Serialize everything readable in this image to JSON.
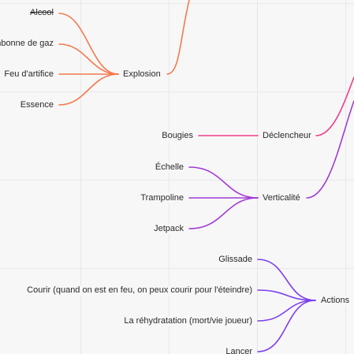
{
  "colors": {
    "orange": "#f37a4d",
    "pink": "#f03d8a",
    "purple": "#a23bd6",
    "violet": "#7c3ff0"
  },
  "branches": {
    "explosion": {
      "label": "Explosion",
      "children": [
        "Alcool",
        "Bonbonne de gaz",
        "Feu d'artifice",
        "Essence"
      ]
    },
    "declencheur": {
      "label": "Déclencheur",
      "children": [
        "Bougies"
      ]
    },
    "verticalite": {
      "label": "Verticalité",
      "children": [
        "Échelle",
        "Trampoline",
        "Jetpack"
      ]
    },
    "actions": {
      "label": "Actions",
      "children": [
        "Glissade",
        "Courir (quand on est en feu, on peux courir pour l'éteindre)",
        "La réhydratation (mort/vie joueur)",
        "Lancer"
      ]
    }
  }
}
